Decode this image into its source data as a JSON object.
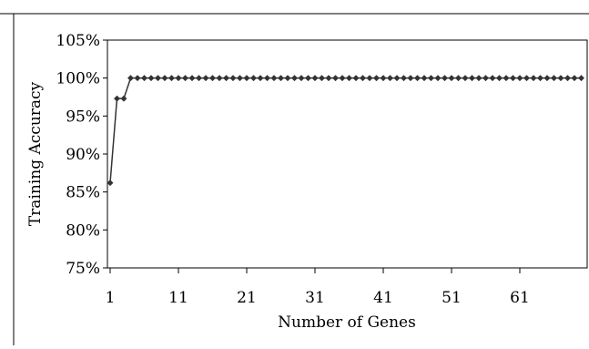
{
  "chart_data": {
    "type": "line",
    "title": "",
    "xlabel": "Number of Genes",
    "ylabel": "Training Accuracy",
    "xlim": [
      0,
      70
    ],
    "ylim": [
      75,
      105
    ],
    "x_ticks": [
      1,
      11,
      21,
      31,
      41,
      51,
      61
    ],
    "y_ticks": [
      "75%",
      "80%",
      "85%",
      "90%",
      "95%",
      "100%",
      "105%"
    ],
    "y_tick_values": [
      75,
      80,
      85,
      90,
      95,
      100,
      105
    ],
    "grid": false,
    "legend": "none",
    "marker": "diamond",
    "series": [
      {
        "color": "#333333",
        "x": [
          1,
          2,
          3,
          4,
          5,
          6,
          7,
          8,
          9,
          10,
          11,
          12,
          13,
          14,
          15,
          16,
          17,
          18,
          19,
          20,
          21,
          22,
          23,
          24,
          25,
          26,
          27,
          28,
          29,
          30,
          31,
          32,
          33,
          34,
          35,
          36,
          37,
          38,
          39,
          40,
          41,
          42,
          43,
          44,
          45,
          46,
          47,
          48,
          49,
          50,
          51,
          52,
          53,
          54,
          55,
          56,
          57,
          58,
          59,
          60,
          61,
          62,
          63,
          64,
          65,
          66,
          67,
          68,
          69,
          70
        ],
        "values": [
          86.2,
          97.3,
          97.3,
          100,
          100,
          100,
          100,
          100,
          100,
          100,
          100,
          100,
          100,
          100,
          100,
          100,
          100,
          100,
          100,
          100,
          100,
          100,
          100,
          100,
          100,
          100,
          100,
          100,
          100,
          100,
          100,
          100,
          100,
          100,
          100,
          100,
          100,
          100,
          100,
          100,
          100,
          100,
          100,
          100,
          100,
          100,
          100,
          100,
          100,
          100,
          100,
          100,
          100,
          100,
          100,
          100,
          100,
          100,
          100,
          100,
          100,
          100,
          100,
          100,
          100,
          100,
          100,
          100,
          100,
          100
        ]
      }
    ]
  }
}
